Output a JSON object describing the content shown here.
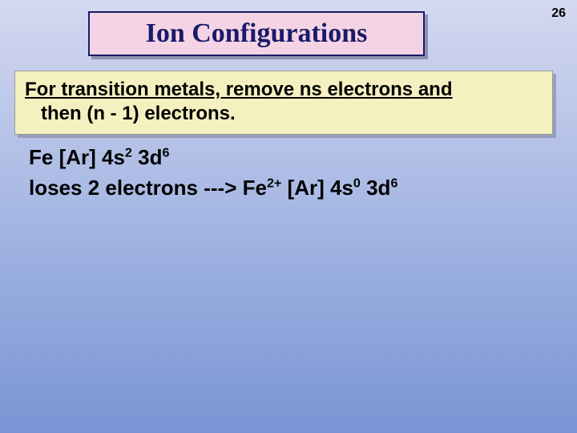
{
  "page_number": "26",
  "title": "Ion Configurations",
  "rule": {
    "line1": "For transition metals, remove ns electrons and",
    "line2": "then (n - 1) electrons."
  },
  "body": {
    "line1_pre": "Fe [Ar] 4s",
    "line1_sup1": "2",
    "line1_mid": " 3d",
    "line1_sup2": "6",
    "line2_a": "loses 2 electrons  --->  Fe",
    "line2_sup_a": "2+",
    "line2_b": "   [Ar] 4s",
    "line2_sup_b": "0",
    "line2_c": " 3d",
    "line2_sup_c": "6"
  },
  "colors": {
    "title_bg": "#f4d4e4",
    "title_border": "#1a1a6a",
    "title_text": "#1a1a6a",
    "rule_bg": "#f5f0c0",
    "body_text": "#000000",
    "gradient_top": "#d4d9f0",
    "gradient_bottom": "#7a95d4"
  }
}
